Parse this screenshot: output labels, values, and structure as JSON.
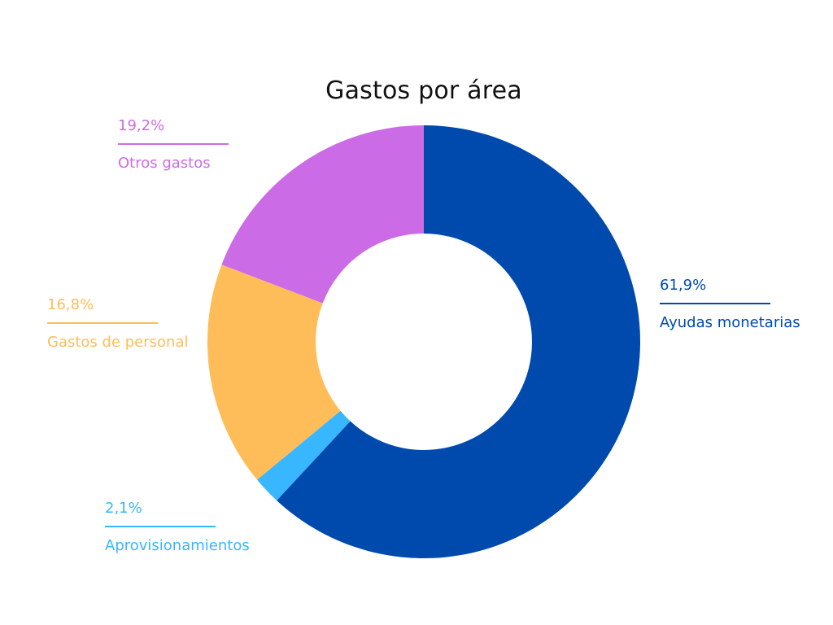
{
  "chart_data": {
    "type": "pie",
    "title": "Gastos por área",
    "categories": [
      "Ayudas monetarias",
      "Aprovisionamientos",
      "Gastos de personal",
      "Otros gastos"
    ],
    "values": [
      61.9,
      2.1,
      16.8,
      19.2
    ],
    "value_labels": [
      "61,9%",
      "2,1%",
      "16,8%",
      "19,2%"
    ],
    "colors": [
      "#004aad",
      "#38b6ff",
      "#ffbd59",
      "#cb6ce6"
    ],
    "hole": true,
    "legend": "none"
  }
}
